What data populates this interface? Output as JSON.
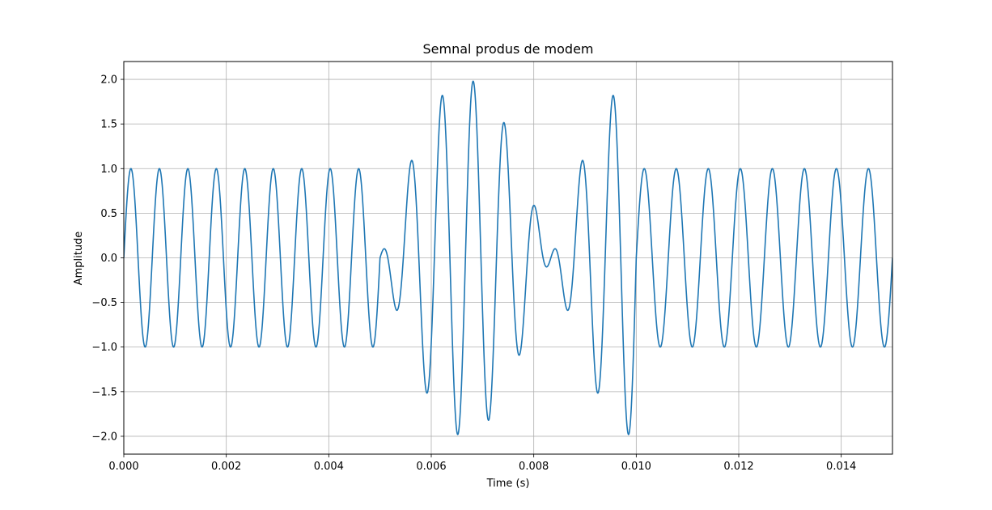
{
  "chart_data": {
    "type": "line",
    "title": "Semnal produs de modem",
    "xlabel": "Time (s)",
    "ylabel": "Amplitude",
    "xlim": [
      0,
      0.015
    ],
    "ylim": [
      -2.2,
      2.2
    ],
    "xticks": [
      "0.000",
      "0.002",
      "0.004",
      "0.006",
      "0.008",
      "0.010",
      "0.012",
      "0.014"
    ],
    "yticks": [
      "2.0",
      "1.5",
      "1.0",
      "0.5",
      "0.0",
      "−0.5",
      "−1.0",
      "−1.5",
      "−2.0"
    ],
    "grid": true,
    "series_color": "#1f77b4",
    "series": [
      {
        "segments": [
          {
            "t_start": 0.0,
            "t_end": 0.005,
            "components": [
              {
                "amplitude": 1.0,
                "frequency_hz": 1800
              }
            ]
          },
          {
            "t_start": 0.005,
            "t_end": 0.01,
            "components": [
              {
                "amplitude": 1.0,
                "frequency_hz": 1800
              },
              {
                "amplitude": 1.0,
                "frequency_hz": 1500
              }
            ]
          },
          {
            "t_start": 0.01,
            "t_end": 0.015,
            "components": [
              {
                "amplitude": 1.0,
                "frequency_hz": 1600
              }
            ]
          }
        ]
      }
    ]
  }
}
